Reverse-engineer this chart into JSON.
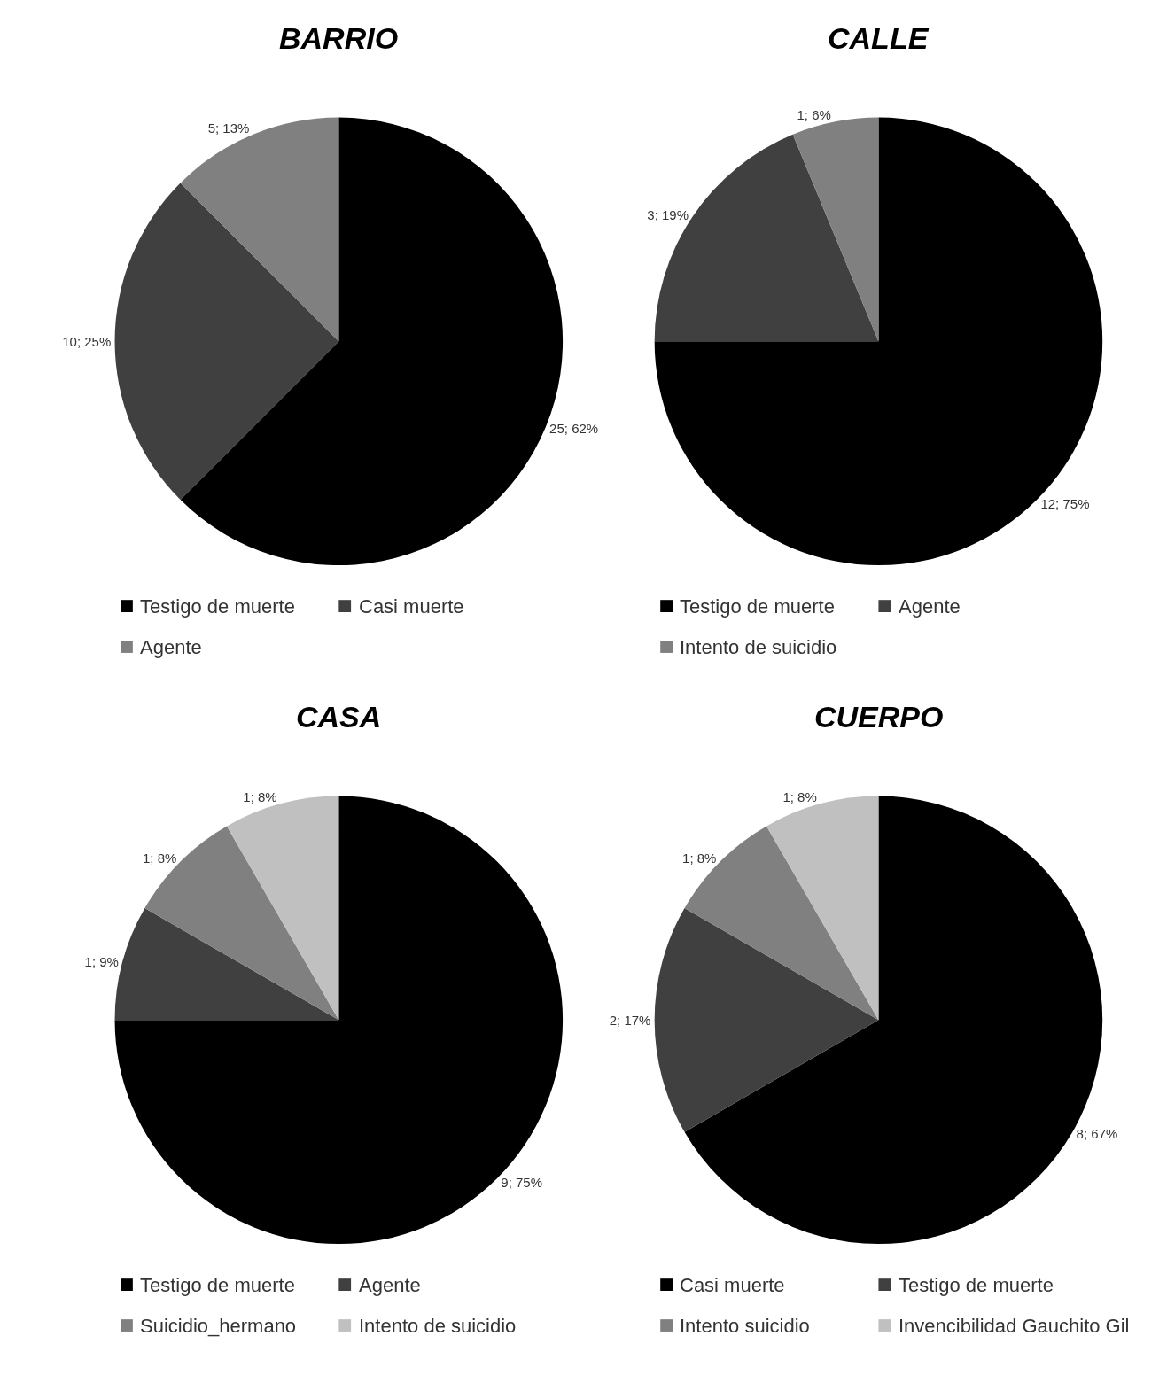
{
  "chart_data": [
    {
      "type": "pie",
      "title": "BARRIO",
      "categories": [
        "Testigo de muerte",
        "Casi muerte",
        "Agente"
      ],
      "values": [
        25,
        10,
        5
      ],
      "colors": [
        "#000000",
        "#404040",
        "#808080"
      ],
      "value_labels": [
        "25; 62%",
        "10; 25%",
        "5; 13%"
      ],
      "legend": "bottom"
    },
    {
      "type": "pie",
      "title": "CALLE",
      "categories": [
        "Testigo de muerte",
        "Agente",
        "Intento de suicidio"
      ],
      "values": [
        12,
        3,
        1
      ],
      "colors": [
        "#000000",
        "#404040",
        "#808080"
      ],
      "value_labels": [
        "12; 75%",
        "3; 19%",
        "1; 6%"
      ],
      "legend": "bottom"
    },
    {
      "type": "pie",
      "title": "CASA",
      "categories": [
        "Testigo de muerte",
        "Agente",
        "Suicidio_hermano",
        "Intento de suicidio"
      ],
      "values": [
        9,
        1,
        1,
        1
      ],
      "colors": [
        "#000000",
        "#404040",
        "#808080",
        "#c0c0c0"
      ],
      "value_labels": [
        "9; 75%",
        "1; 9%",
        "1; 8%",
        "1; 8%"
      ],
      "legend": "bottom"
    },
    {
      "type": "pie",
      "title": "CUERPO",
      "categories": [
        "Casi muerte",
        "Testigo de muerte",
        "Intento suicidio",
        "Invencibilidad Gauchito Gil"
      ],
      "values": [
        8,
        2,
        1,
        1
      ],
      "colors": [
        "#000000",
        "#404040",
        "#808080",
        "#c0c0c0"
      ],
      "value_labels": [
        "8; 67%",
        "2; 17%",
        "1; 8%",
        "1; 8%"
      ],
      "legend": "bottom"
    }
  ]
}
